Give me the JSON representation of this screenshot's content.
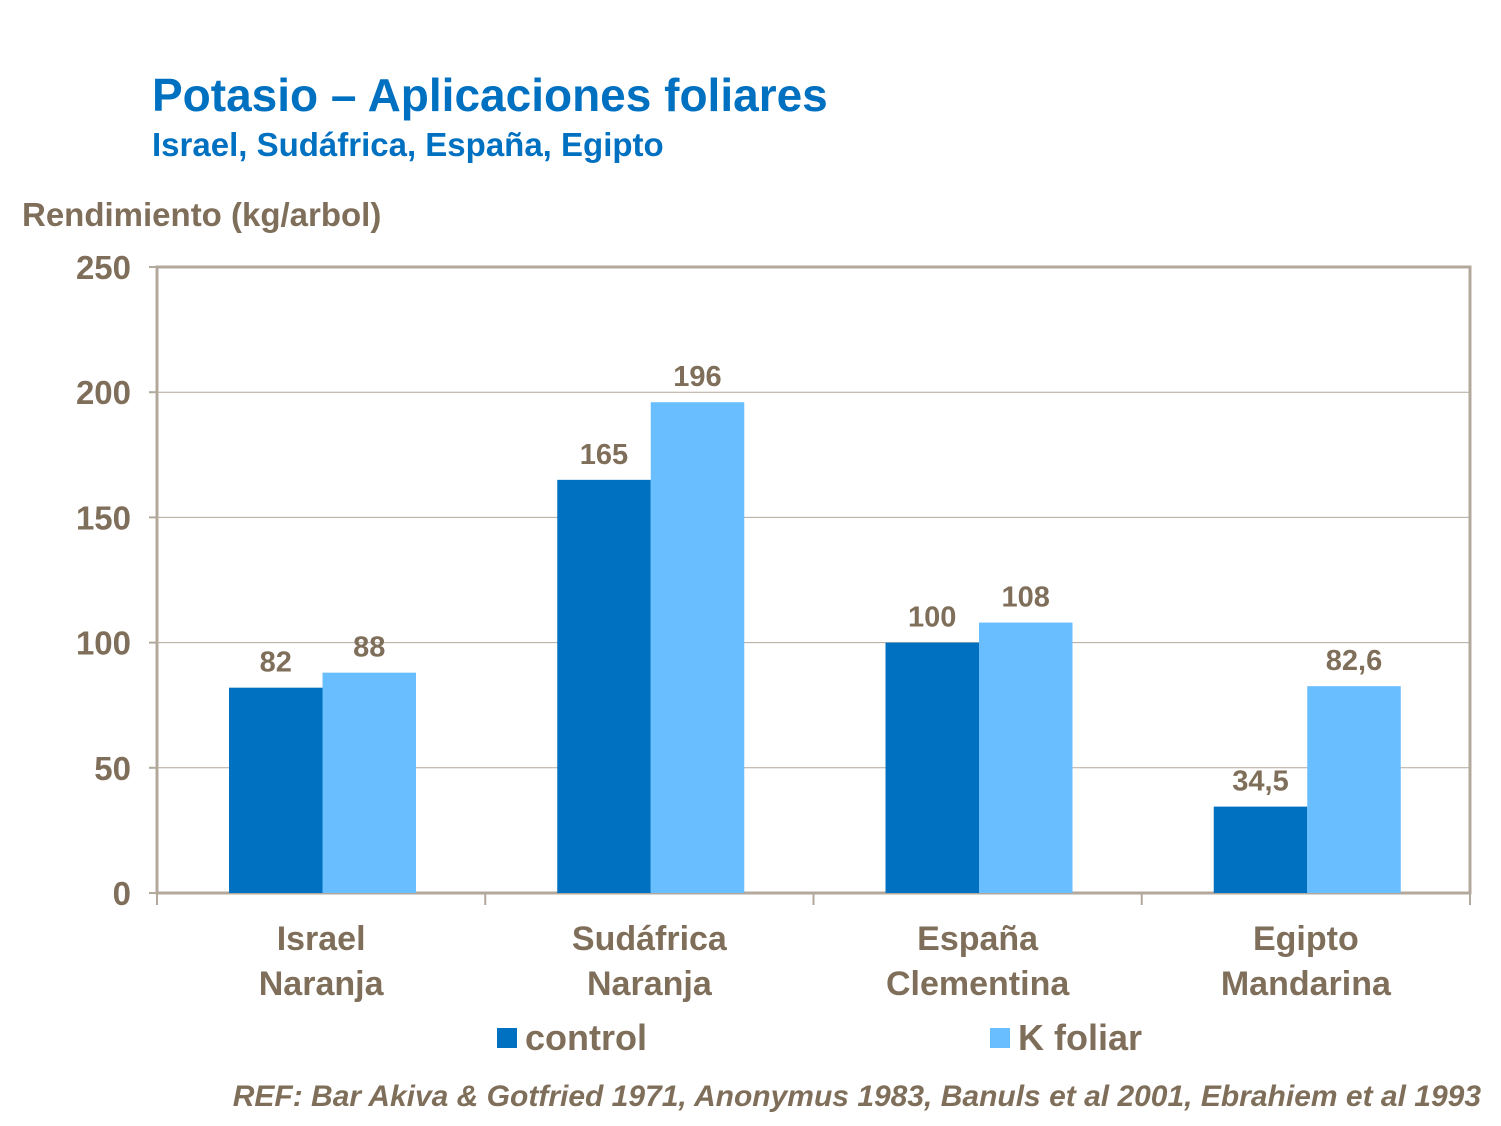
{
  "chart_data": {
    "type": "bar",
    "title": "Potasio – Aplicaciones foliares",
    "subtitle": "Israel, Sudáfrica, España, Egipto",
    "xlabel": "",
    "ylabel": "Rendimiento (kg/arbol)",
    "ylim": [
      0,
      250
    ],
    "yticks": [
      "0",
      "50",
      "100",
      "150",
      "200",
      "250"
    ],
    "grid": true,
    "legend_position": "bottom",
    "categories": [
      [
        "Israel",
        "Naranja"
      ],
      [
        "Sudáfrica",
        "Naranja"
      ],
      [
        "España",
        "Clementina"
      ],
      [
        "Egipto",
        "Mandarina"
      ]
    ],
    "series": [
      {
        "name": "control",
        "color": "#0070C0",
        "values": [
          82,
          165,
          100,
          34.5
        ],
        "labels": [
          "82",
          "165",
          "100",
          "34,5"
        ]
      },
      {
        "name": "K foliar",
        "color": "#69BEFF",
        "values": [
          88,
          196,
          108,
          82.6
        ],
        "labels": [
          "88",
          "196",
          "108",
          "82,6"
        ]
      }
    ]
  },
  "footer": {
    "reference": "REF: Bar Akiva & Gotfried 1971, Anonymus 1983, Banuls et al 2001, Ebrahiem et al 1993"
  },
  "colors": {
    "text": "#7F6F5A",
    "title": "#0070C0",
    "frame": "#B3A89C"
  }
}
